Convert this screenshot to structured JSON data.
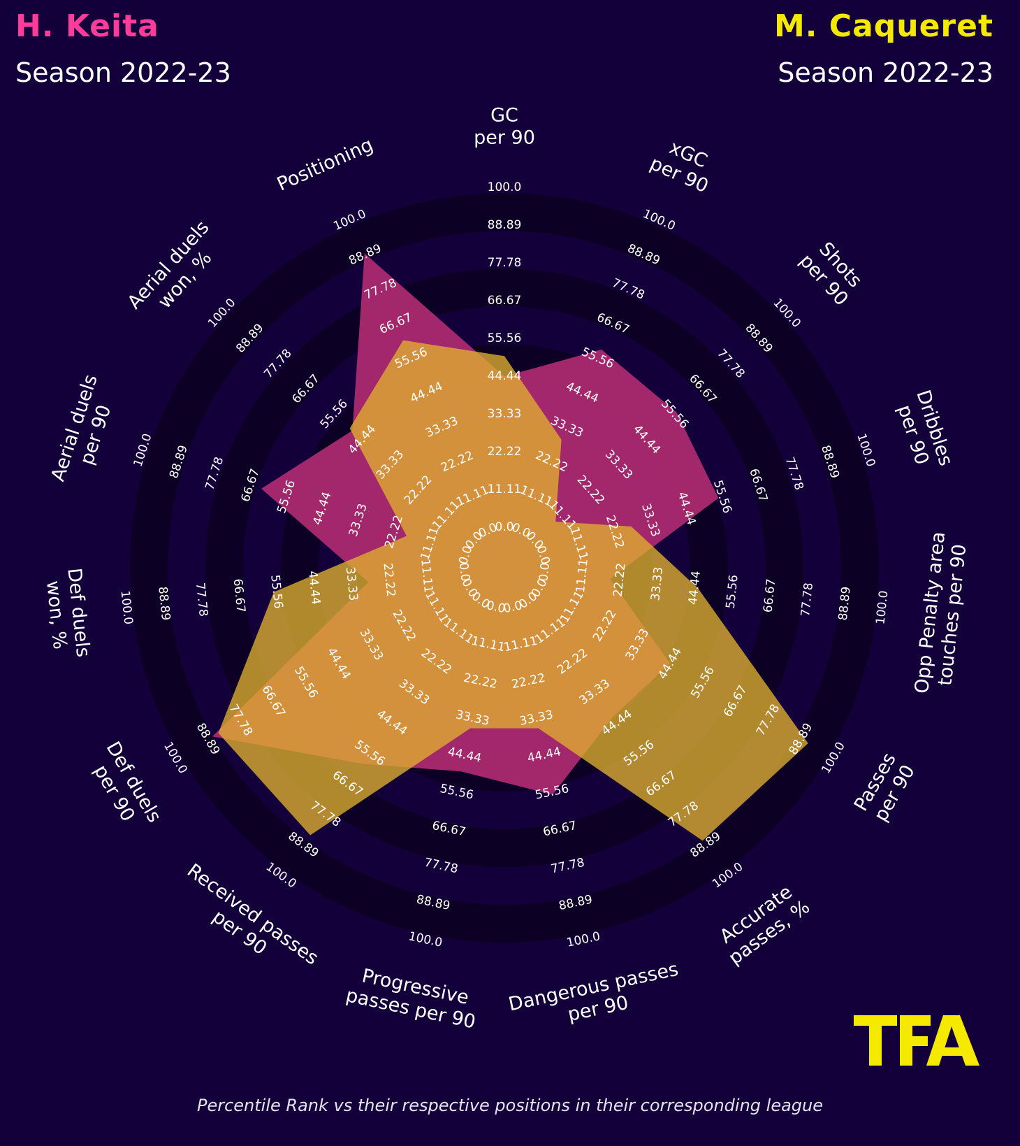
{
  "header": {
    "left": {
      "name": "H. Keita",
      "season": "Season 2022-23"
    },
    "right": {
      "name": "M. Caqueret",
      "season": "Season 2022-23"
    }
  },
  "footnote": "Percentile Rank vs their respective positions in their corresponding league",
  "logo": {
    "text": "TFA",
    "color": "#f5e900"
  },
  "colors": {
    "background": "#13003a",
    "ring_dark": "#0c0024",
    "ring_light": "#13003a",
    "keita": "#ff3c9a",
    "caqueret": "#f5e900",
    "keita_fill": "#b02a72",
    "caqueret_fill": "#e0b030",
    "tick_text": "#ffffff",
    "label_text": "#ffffff"
  },
  "chart_data": {
    "type": "radar",
    "range": [
      0,
      100
    ],
    "ticks": [
      "0.0",
      "11.11",
      "22.22",
      "33.33",
      "44.44",
      "55.56",
      "66.67",
      "77.78",
      "88.89",
      "100.0"
    ],
    "categories": [
      "GC\nper 90",
      "xGC\nper 90",
      "Shots\nper 90",
      "Dribbles\nper 90",
      "Opp Penalty area\ntouches per 90",
      "Passes\nper 90",
      "Accurate\npasses, %",
      "Dangerous passes\nper 90",
      "Progressive\npasses per 90",
      "Received passes\nper 90",
      "Def duels\nper 90",
      "Def duels\nwon, %",
      "Aerial duels\nper 90",
      "Aerial duels\nwon, %",
      "Positioning"
    ],
    "series": [
      {
        "name": "H. Keita",
        "values": [
          46,
          60,
          58,
          56,
          21,
          46,
          44,
          58,
          51,
          61,
          89,
          30,
          65,
          50,
          91
        ]
      },
      {
        "name": "M. Caqueret",
        "values": [
          52,
          31,
          10,
          29,
          47,
          93,
          89,
          38,
          38,
          87,
          87,
          58,
          20,
          51,
          63
        ]
      }
    ]
  }
}
